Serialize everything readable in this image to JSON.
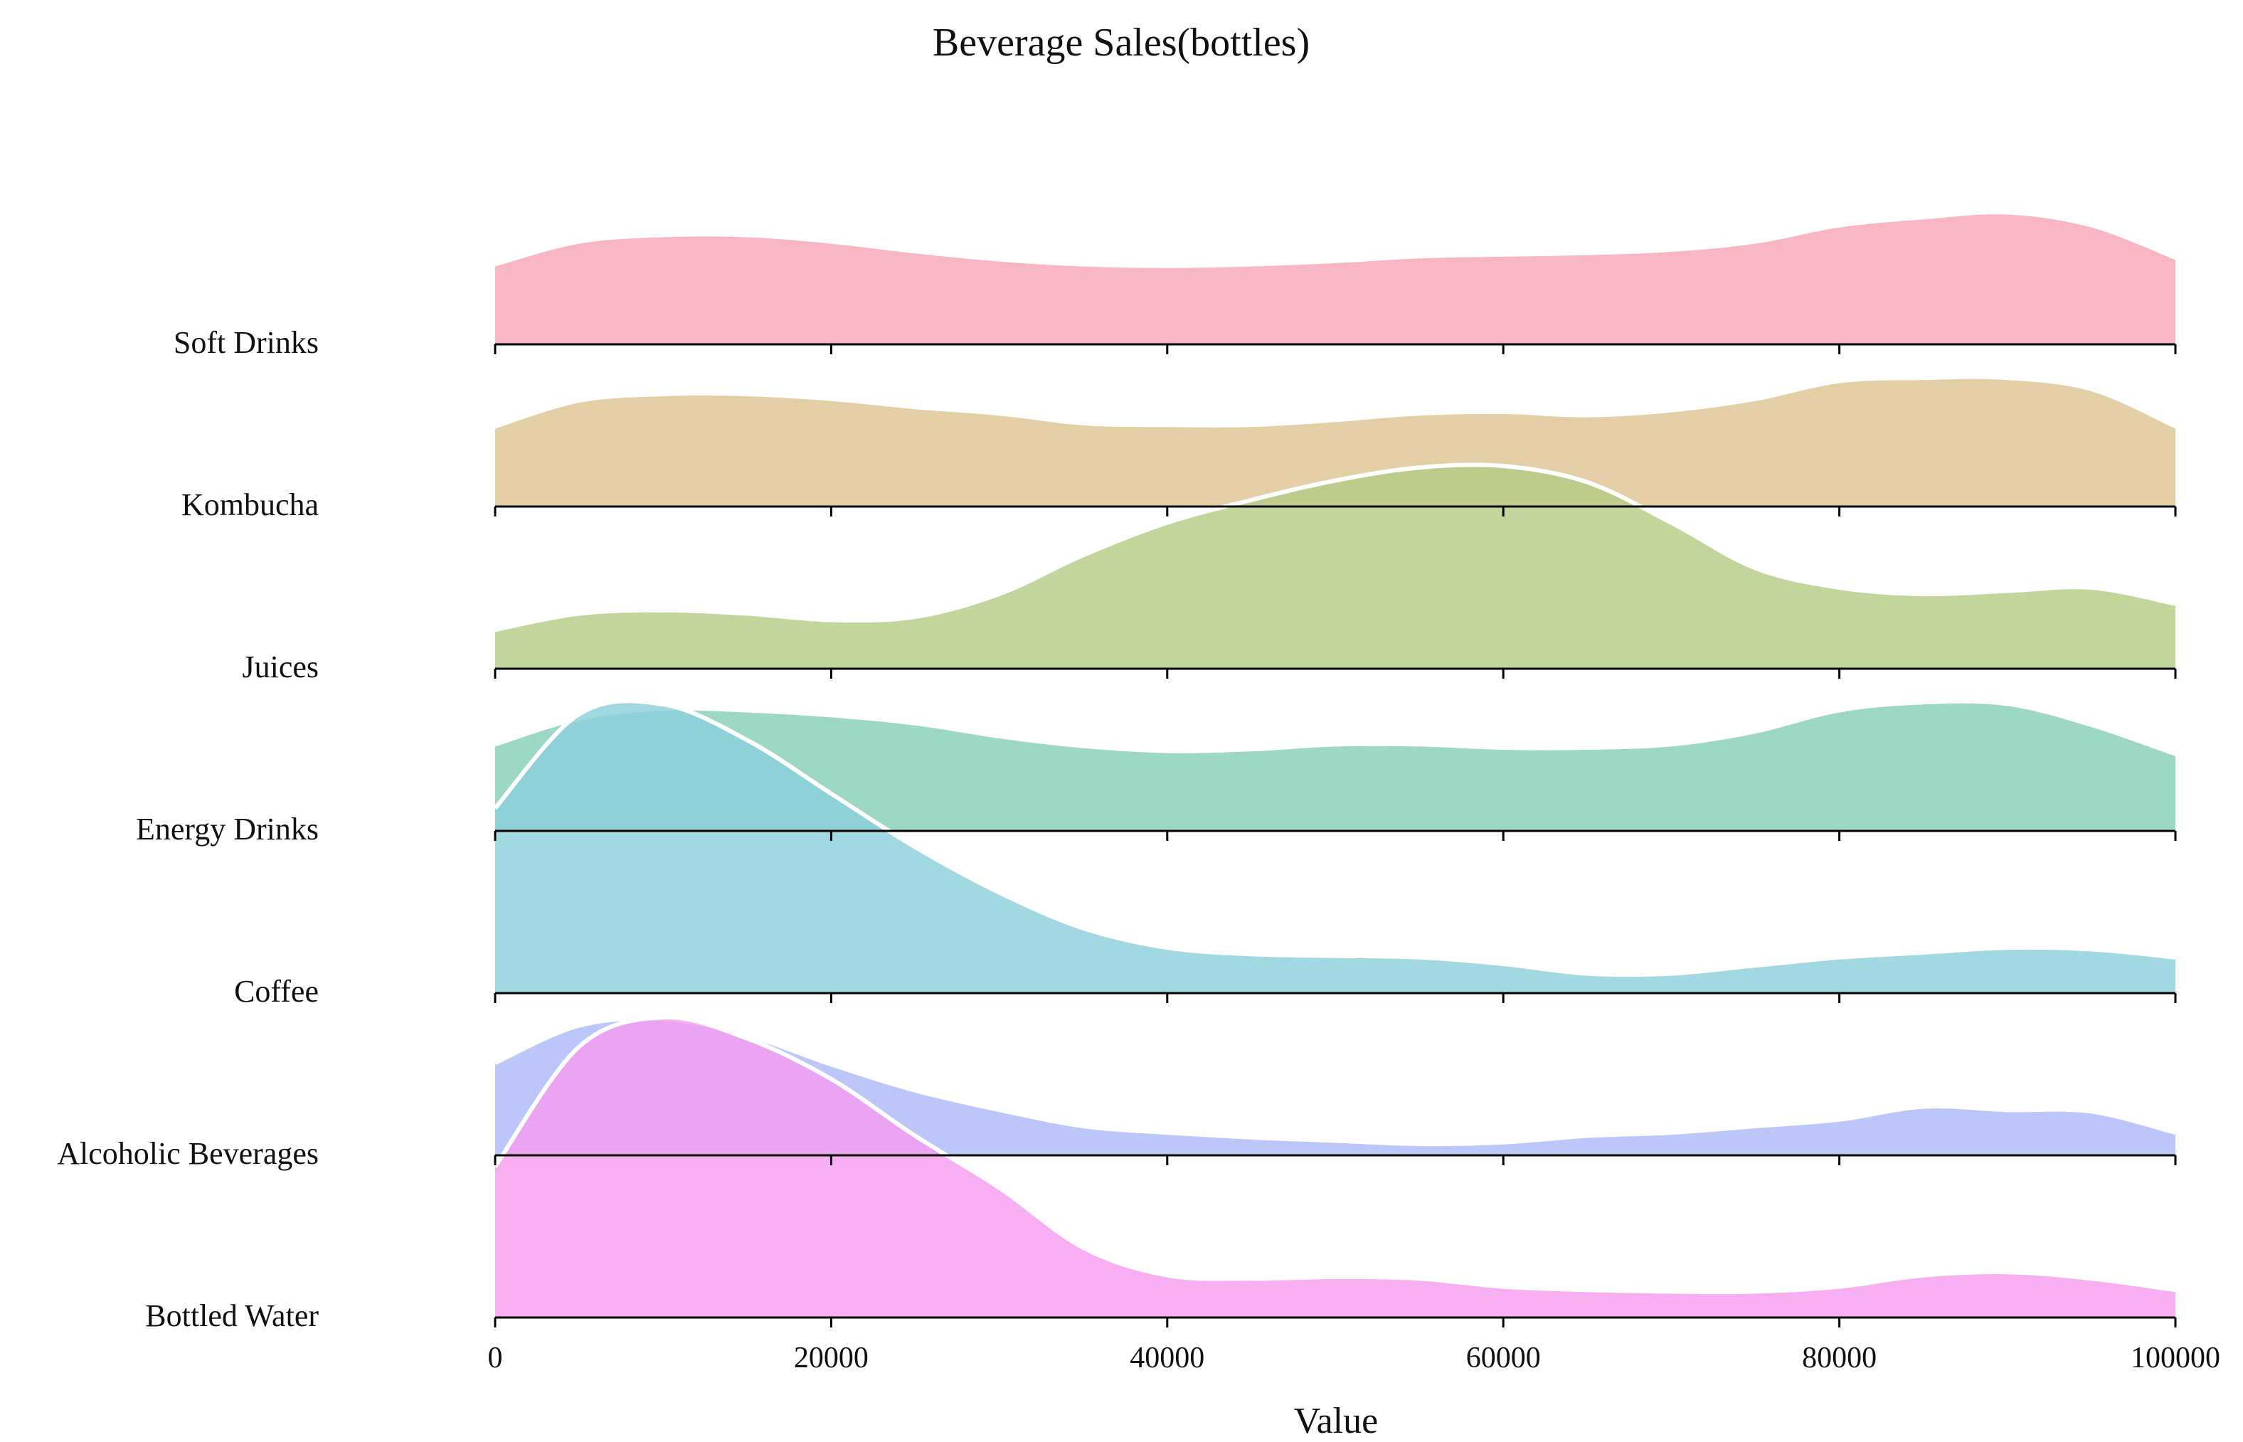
{
  "chart_data": {
    "type": "area",
    "subtype": "ridgeline",
    "title": "Beverage Sales(bottles)",
    "xlabel": "Value",
    "ylabel": "",
    "xlim": [
      0,
      100000
    ],
    "x_ticks": [
      0,
      20000,
      40000,
      60000,
      80000,
      100000
    ],
    "x_tick_labels": [
      "0",
      "20000",
      "40000",
      "60000",
      "80000",
      "100000"
    ],
    "grid": false,
    "legend": "none",
    "x": [
      0,
      5000,
      10000,
      15000,
      20000,
      25000,
      30000,
      35000,
      40000,
      45000,
      50000,
      55000,
      60000,
      65000,
      70000,
      75000,
      80000,
      85000,
      90000,
      95000,
      100000
    ],
    "series": [
      {
        "name": "Soft Drinks",
        "color": "#f7a6b8",
        "highlight": false,
        "values": [
          0.48,
          0.62,
          0.66,
          0.66,
          0.62,
          0.56,
          0.51,
          0.48,
          0.47,
          0.48,
          0.5,
          0.53,
          0.54,
          0.55,
          0.57,
          0.62,
          0.72,
          0.77,
          0.8,
          0.72,
          0.52
        ]
      },
      {
        "name": "Kombucha",
        "color": "#ddc391",
        "highlight": false,
        "values": [
          0.48,
          0.64,
          0.68,
          0.68,
          0.65,
          0.6,
          0.56,
          0.5,
          0.49,
          0.49,
          0.52,
          0.56,
          0.57,
          0.55,
          0.58,
          0.65,
          0.76,
          0.78,
          0.78,
          0.71,
          0.48
        ]
      },
      {
        "name": "Juices",
        "color": "#b4cc84",
        "highlight": true,
        "values": [
          0.24,
          0.34,
          0.36,
          0.34,
          0.3,
          0.32,
          0.46,
          0.7,
          0.9,
          1.04,
          1.16,
          1.24,
          1.25,
          1.15,
          0.9,
          0.62,
          0.5,
          0.46,
          0.48,
          0.5,
          0.4
        ]
      },
      {
        "name": "Energy Drinks",
        "color": "#86d0b8",
        "highlight": false,
        "values": [
          0.52,
          0.68,
          0.74,
          0.73,
          0.7,
          0.65,
          0.57,
          0.51,
          0.48,
          0.49,
          0.52,
          0.52,
          0.5,
          0.5,
          0.52,
          0.6,
          0.73,
          0.78,
          0.77,
          0.64,
          0.46
        ]
      },
      {
        "name": "Coffee",
        "color": "#8ccfdc",
        "highlight": true,
        "values": [
          1.14,
          1.72,
          1.78,
          1.56,
          1.23,
          0.9,
          0.62,
          0.4,
          0.28,
          0.24,
          0.23,
          0.22,
          0.18,
          0.12,
          0.12,
          0.17,
          0.22,
          0.25,
          0.28,
          0.27,
          0.22
        ]
      },
      {
        "name": "Alcoholic Beverages",
        "color": "#afbaf6",
        "highlight": true,
        "values": [
          0.57,
          0.8,
          0.84,
          0.74,
          0.56,
          0.4,
          0.28,
          0.18,
          0.14,
          0.11,
          0.09,
          0.07,
          0.08,
          0.12,
          0.14,
          0.18,
          0.22,
          0.3,
          0.28,
          0.27,
          0.14
        ]
      },
      {
        "name": "Bottled Water",
        "color": "#f59cf0",
        "highlight": true,
        "values": [
          0.93,
          1.67,
          1.85,
          1.72,
          1.47,
          1.12,
          0.8,
          0.43,
          0.26,
          0.24,
          0.25,
          0.24,
          0.19,
          0.17,
          0.16,
          0.16,
          0.19,
          0.26,
          0.28,
          0.24,
          0.17
        ]
      }
    ]
  }
}
